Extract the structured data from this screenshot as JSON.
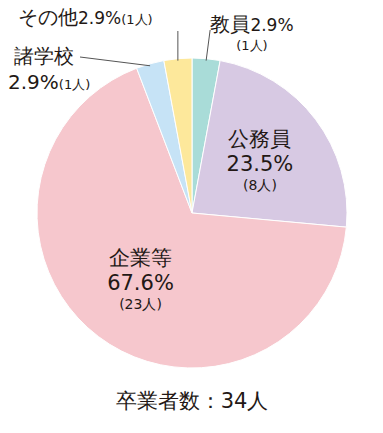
{
  "chart_data": {
    "type": "pie",
    "categories": [
      "教員",
      "公務員",
      "企業等",
      "諸学校",
      "その他"
    ],
    "values": [
      2.9,
      23.5,
      67.6,
      2.9,
      2.9
    ],
    "value_labels": [
      "2.9%",
      "23.5%",
      "67.6%",
      "2.9%",
      "2.9%"
    ],
    "count_labels": [
      "(1人)",
      "(8人)",
      "(23人)",
      "(1人)",
      "(1人)"
    ],
    "colors": [
      "#a9dcd8",
      "#d7c9e3",
      "#f6c7cd",
      "#c6e3f6",
      "#fde89b"
    ],
    "data_labels": true,
    "caption": "卒業者数：34人"
  }
}
